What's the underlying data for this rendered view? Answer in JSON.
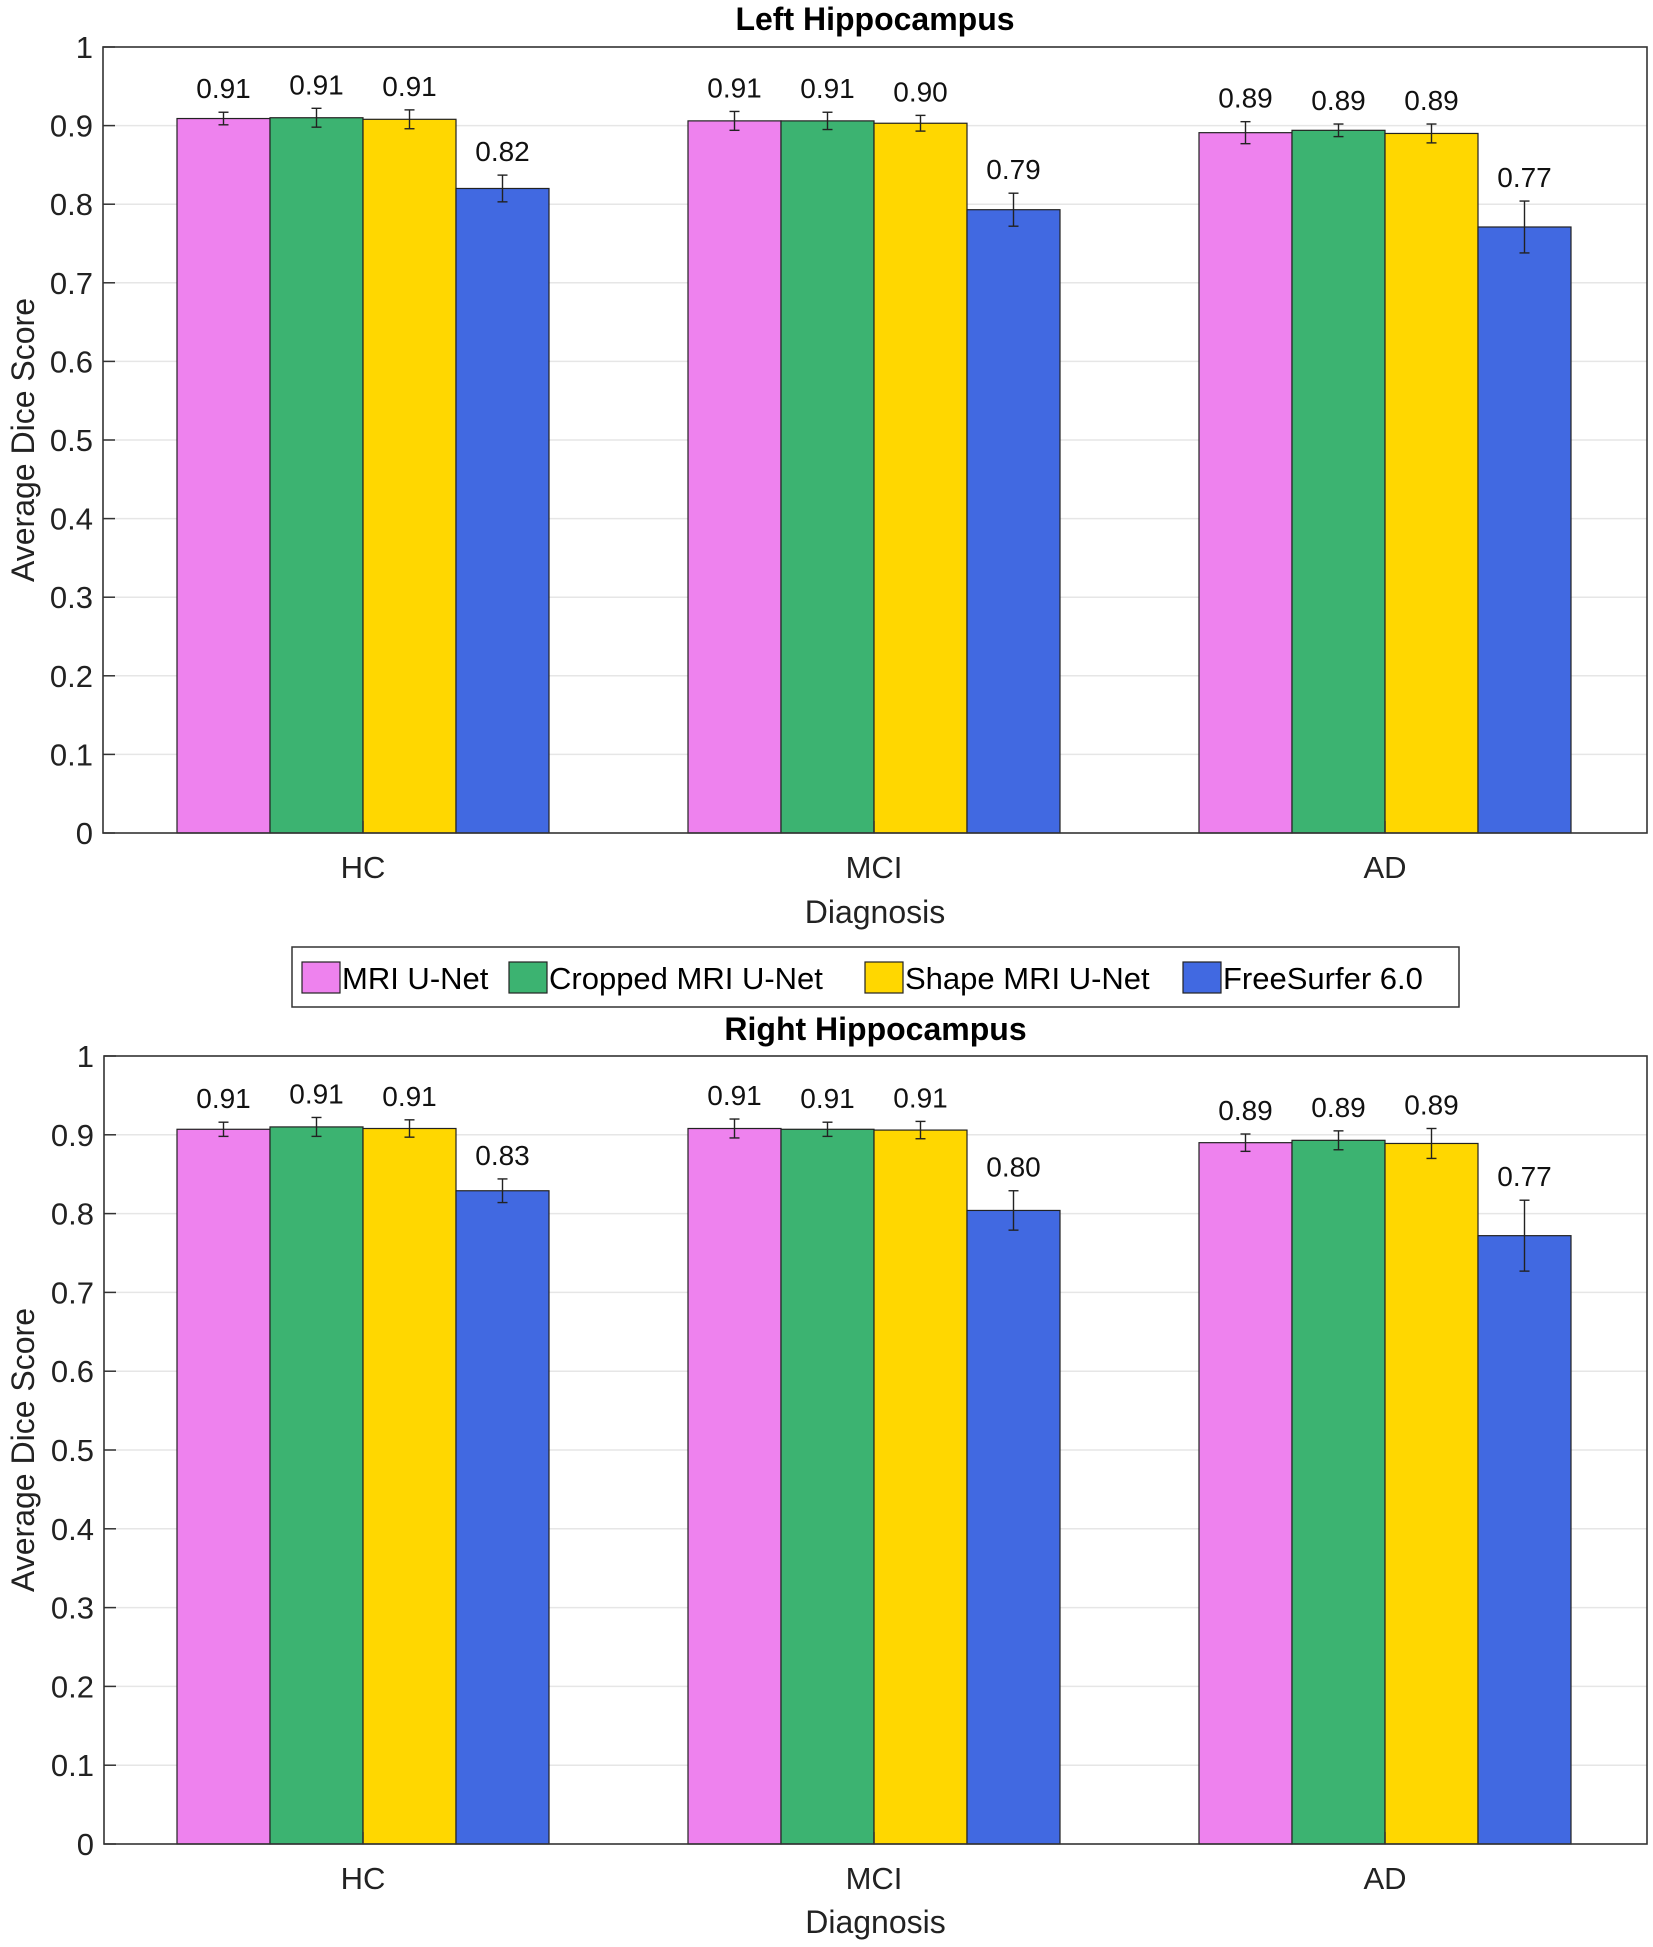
{
  "legend": {
    "entries": [
      "MRI U-Net",
      "Cropped MRI U-Net",
      "Shape MRI U-Net",
      "FreeSurfer 6.0"
    ]
  },
  "colors": {
    "MRI U-Net": "#EE82EE",
    "Cropped MRI U-Net": "#3CB371",
    "Shape MRI U-Net": "#FFD700",
    "FreeSurfer 6.0": "#4169E1"
  },
  "chart_data": [
    {
      "type": "bar",
      "title": "Left Hippocampus",
      "xlabel": "Diagnosis",
      "ylabel": "Average Dice Score",
      "ylim": [
        0,
        1
      ],
      "yticks": [
        "0",
        "0.1",
        "0.2",
        "0.3",
        "0.4",
        "0.5",
        "0.6",
        "0.7",
        "0.8",
        "0.9",
        "1"
      ],
      "categories": [
        "HC",
        "MCI",
        "AD"
      ],
      "series": [
        {
          "name": "MRI U-Net",
          "values": [
            0.909,
            0.906,
            0.891
          ],
          "errors": [
            0.008,
            0.012,
            0.014
          ],
          "labels": [
            "0.91",
            "0.91",
            "0.89"
          ]
        },
        {
          "name": "Cropped MRI U-Net",
          "values": [
            0.91,
            0.906,
            0.894
          ],
          "errors": [
            0.012,
            0.011,
            0.008
          ],
          "labels": [
            "0.91",
            "0.91",
            "0.89"
          ]
        },
        {
          "name": "Shape MRI U-Net",
          "values": [
            0.908,
            0.903,
            0.89
          ],
          "errors": [
            0.012,
            0.01,
            0.012
          ],
          "labels": [
            "0.91",
            "0.90",
            "0.89"
          ]
        },
        {
          "name": "FreeSurfer 6.0",
          "values": [
            0.82,
            0.793,
            0.771
          ],
          "errors": [
            0.017,
            0.021,
            0.033
          ],
          "labels": [
            "0.82",
            "0.79",
            "0.77"
          ]
        }
      ]
    },
    {
      "type": "bar",
      "title": "Right Hippocampus",
      "xlabel": "Diagnosis",
      "ylabel": "Average Dice Score",
      "ylim": [
        0,
        1
      ],
      "yticks": [
        "0",
        "0.1",
        "0.2",
        "0.3",
        "0.4",
        "0.5",
        "0.6",
        "0.7",
        "0.8",
        "0.9",
        "1"
      ],
      "categories": [
        "HC",
        "MCI",
        "AD"
      ],
      "series": [
        {
          "name": "MRI U-Net",
          "values": [
            0.907,
            0.908,
            0.89
          ],
          "errors": [
            0.009,
            0.012,
            0.011
          ],
          "labels": [
            "0.91",
            "0.91",
            "0.89"
          ]
        },
        {
          "name": "Cropped MRI U-Net",
          "values": [
            0.91,
            0.907,
            0.893
          ],
          "errors": [
            0.012,
            0.009,
            0.012
          ],
          "labels": [
            "0.91",
            "0.91",
            "0.89"
          ]
        },
        {
          "name": "Shape MRI U-Net",
          "values": [
            0.908,
            0.906,
            0.889
          ],
          "errors": [
            0.011,
            0.011,
            0.019
          ],
          "labels": [
            "0.91",
            "0.91",
            "0.89"
          ]
        },
        {
          "name": "FreeSurfer 6.0",
          "values": [
            0.829,
            0.804,
            0.772
          ],
          "errors": [
            0.015,
            0.025,
            0.045
          ],
          "labels": [
            "0.83",
            "0.80",
            "0.77"
          ]
        }
      ]
    }
  ]
}
